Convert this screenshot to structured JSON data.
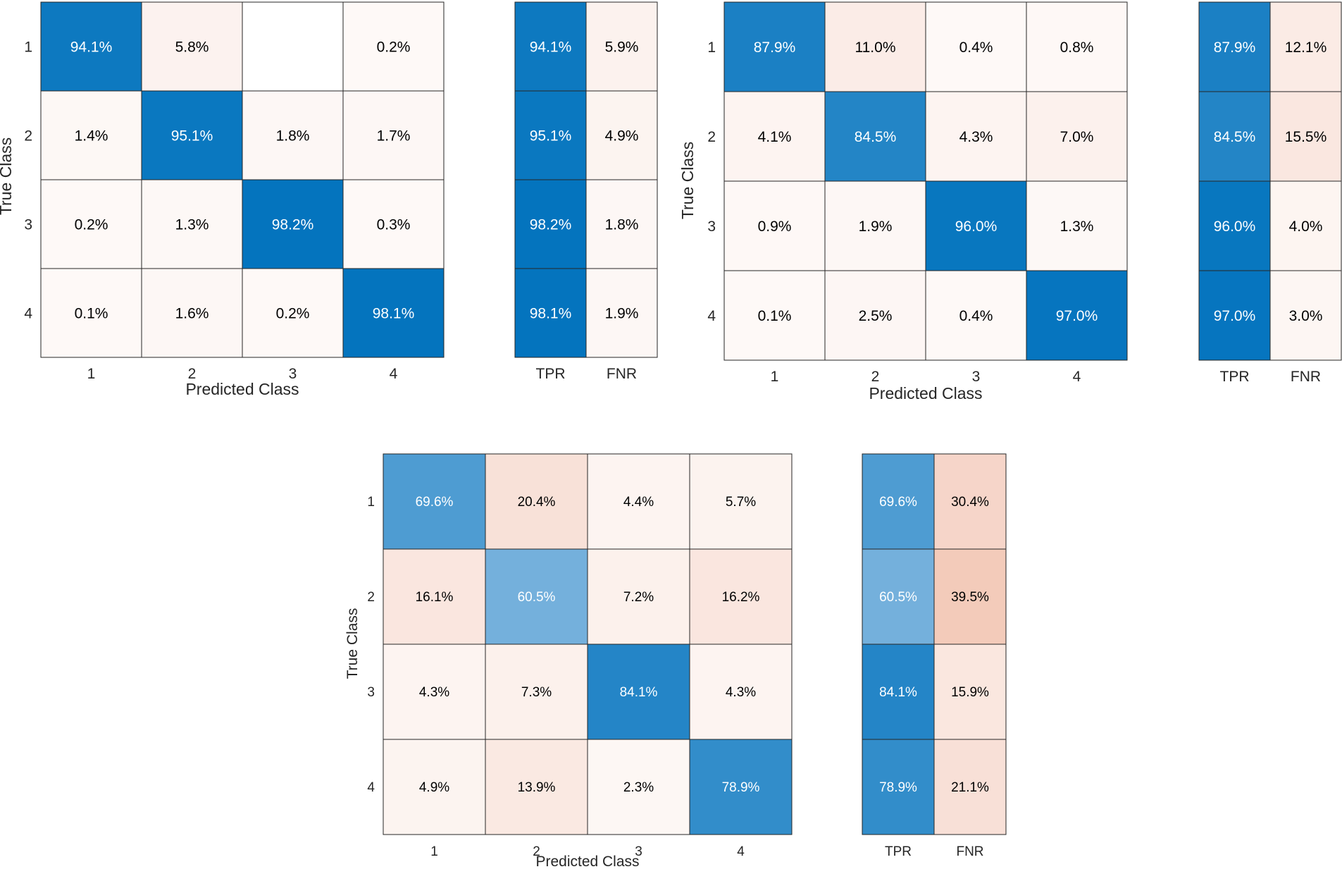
{
  "chart_data": [
    {
      "type": "heatmap",
      "classes": [
        "1",
        "2",
        "3",
        "4"
      ],
      "xlabel": "Predicted Class",
      "ylabel": "True Class",
      "summary_labels": [
        "TPR",
        "FNR"
      ],
      "matrix": [
        [
          94.1,
          5.8,
          null,
          0.2
        ],
        [
          1.4,
          95.1,
          1.8,
          1.7
        ],
        [
          0.2,
          1.3,
          98.2,
          0.3
        ],
        [
          0.1,
          1.6,
          0.2,
          98.1
        ]
      ],
      "cell_labels": [
        [
          "94.1%",
          "5.8%",
          "",
          "0.2%"
        ],
        [
          "1.4%",
          "95.1%",
          "1.8%",
          "1.7%"
        ],
        [
          "0.2%",
          "1.3%",
          "98.2%",
          "0.3%"
        ],
        [
          "0.1%",
          "1.6%",
          "0.2%",
          "98.1%"
        ]
      ],
      "tpr": [
        94.1,
        95.1,
        98.2,
        98.1
      ],
      "fnr": [
        5.9,
        4.9,
        1.8,
        1.9
      ],
      "tpr_labels": [
        "94.1%",
        "95.1%",
        "98.2%",
        "98.1%"
      ],
      "fnr_labels": [
        "5.9%",
        "4.9%",
        "1.8%",
        "1.9%"
      ]
    },
    {
      "type": "heatmap",
      "classes": [
        "1",
        "2",
        "3",
        "4"
      ],
      "xlabel": "Predicted Class",
      "ylabel": "True Class",
      "summary_labels": [
        "TPR",
        "FNR"
      ],
      "matrix": [
        [
          87.9,
          11.0,
          0.4,
          0.8
        ],
        [
          4.1,
          84.5,
          4.3,
          7.0
        ],
        [
          0.9,
          1.9,
          96.0,
          1.3
        ],
        [
          0.1,
          2.5,
          0.4,
          97.0
        ]
      ],
      "cell_labels": [
        [
          "87.9%",
          "11.0%",
          "0.4%",
          "0.8%"
        ],
        [
          "4.1%",
          "84.5%",
          "4.3%",
          "7.0%"
        ],
        [
          "0.9%",
          "1.9%",
          "96.0%",
          "1.3%"
        ],
        [
          "0.1%",
          "2.5%",
          "0.4%",
          "97.0%"
        ]
      ],
      "tpr": [
        87.9,
        84.5,
        96.0,
        97.0
      ],
      "fnr": [
        12.1,
        15.5,
        4.0,
        3.0
      ],
      "tpr_labels": [
        "87.9%",
        "84.5%",
        "96.0%",
        "97.0%"
      ],
      "fnr_labels": [
        "12.1%",
        "15.5%",
        "4.0%",
        "3.0%"
      ]
    },
    {
      "type": "heatmap",
      "classes": [
        "1",
        "2",
        "3",
        "4"
      ],
      "xlabel": "Predicted Class",
      "ylabel": "True Class",
      "summary_labels": [
        "TPR",
        "FNR"
      ],
      "matrix": [
        [
          69.6,
          20.4,
          4.4,
          5.7
        ],
        [
          16.1,
          60.5,
          7.2,
          16.2
        ],
        [
          4.3,
          7.3,
          84.1,
          4.3
        ],
        [
          4.9,
          13.9,
          2.3,
          78.9
        ]
      ],
      "cell_labels": [
        [
          "69.6%",
          "20.4%",
          "4.4%",
          "5.7%"
        ],
        [
          "16.1%",
          "60.5%",
          "7.2%",
          "16.2%"
        ],
        [
          "4.3%",
          "7.3%",
          "84.1%",
          "4.3%"
        ],
        [
          "4.9%",
          "13.9%",
          "2.3%",
          "78.9%"
        ]
      ],
      "tpr": [
        69.6,
        60.5,
        84.1,
        78.9
      ],
      "fnr": [
        30.4,
        39.5,
        15.9,
        21.1
      ],
      "tpr_labels": [
        "69.6%",
        "60.5%",
        "84.1%",
        "78.9%"
      ],
      "fnr_labels": [
        "30.4%",
        "39.5%",
        "15.9%",
        "21.1%"
      ]
    }
  ],
  "colors": {
    "diagonal_strong": "#0072bd",
    "diagonal_light": "#a9cdea",
    "offdiag_strong": "#d9531e",
    "offdiag_light": "#ffffff",
    "grid_line": "#262626",
    "text_dark": "#000000",
    "text_light": "#ffffff",
    "axis_text": "#262626"
  }
}
